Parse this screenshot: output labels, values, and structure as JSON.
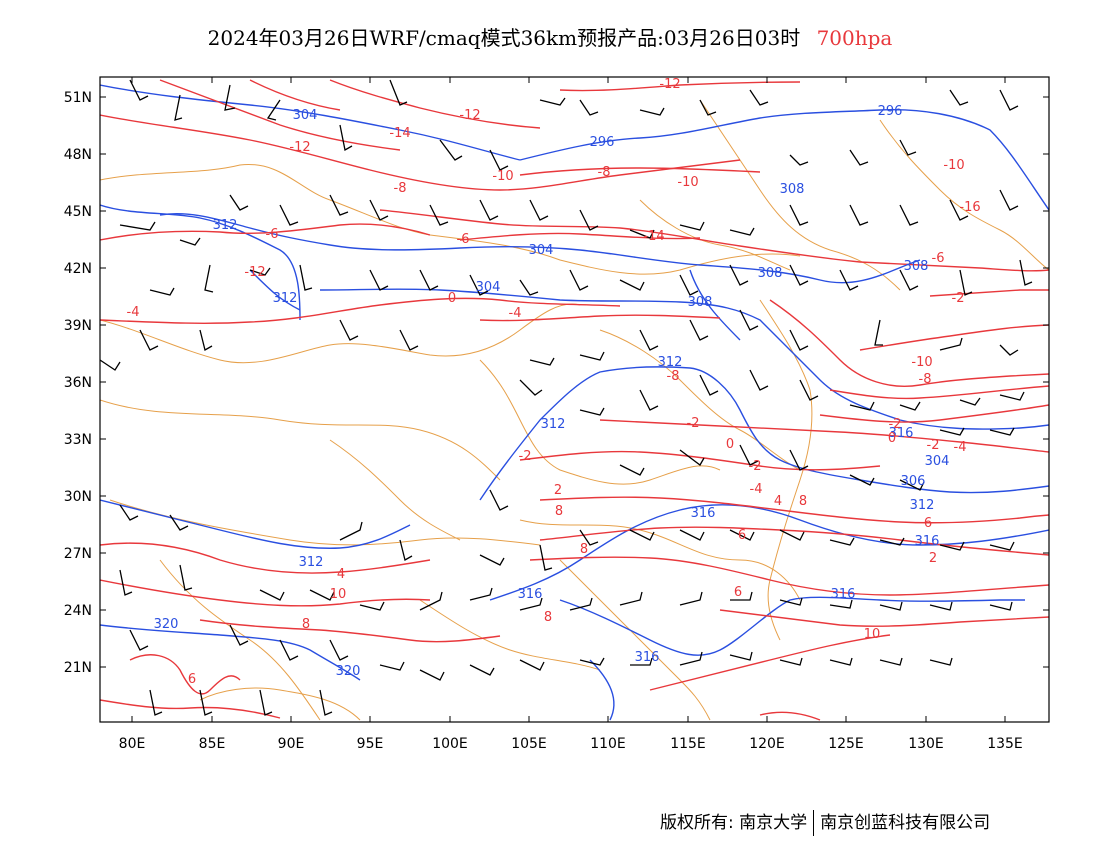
{
  "title": {
    "main": "2024年03月26日WRF/cmaq模式36km预报产品:03月26日03时",
    "level": "700hpa"
  },
  "colors": {
    "temperature": "#e8383c",
    "height": "#2a4fe0",
    "border": "#e6a04a",
    "wind": "#000000"
  },
  "axes": {
    "lat_labels": [
      "51N",
      "48N",
      "45N",
      "42N",
      "39N",
      "36N",
      "33N",
      "30N",
      "27N",
      "24N",
      "21N"
    ],
    "lon_labels": [
      "80E",
      "85E",
      "90E",
      "95E",
      "100E",
      "105E",
      "110E",
      "115E",
      "120E",
      "125E",
      "130E",
      "135E"
    ]
  },
  "height_labels": [
    "304",
    "296",
    "296",
    "308",
    "312",
    "304",
    "312",
    "304",
    "308",
    "308",
    "308",
    "312",
    "312",
    "306",
    "304",
    "312",
    "316",
    "316",
    "312",
    "316",
    "316",
    "320",
    "316",
    "320",
    "316"
  ],
  "temp_labels": [
    "-12",
    "-12",
    "-14",
    "-12",
    "-10",
    "-10",
    "-8",
    "-8",
    "-10",
    "-16",
    "-14",
    "-6",
    "-6",
    "-6",
    "-12",
    "-4",
    "0",
    "-4",
    "-2",
    "-10",
    "-8",
    "-8",
    "-2",
    "-2",
    "0",
    "-2",
    "-4",
    "0",
    "-2",
    "-2",
    "2",
    "-4",
    "4",
    "6",
    "8",
    "8",
    "2",
    "6",
    "6",
    "4",
    "8",
    "10",
    "8",
    "6",
    "10",
    "8"
  ],
  "credit": {
    "left": "版权所有: 南京大学",
    "right": "南京创蓝科技有限公司"
  }
}
